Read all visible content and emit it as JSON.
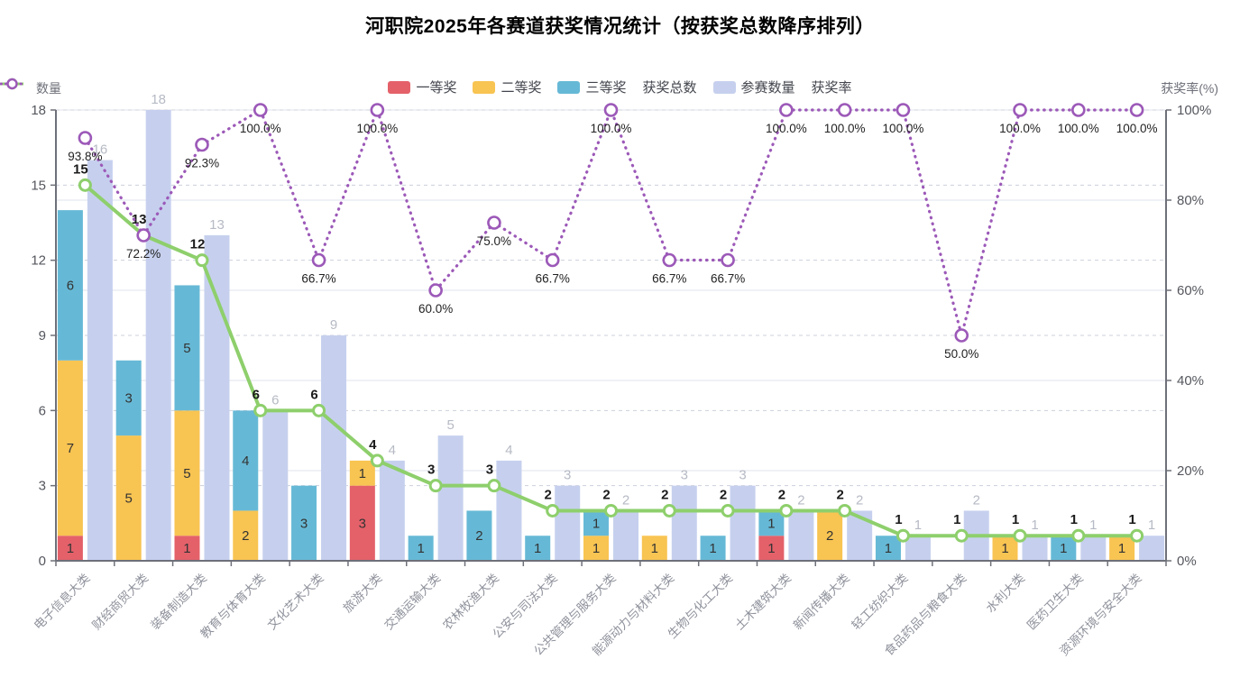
{
  "chart_data": {
    "type": "bar+line combo (stacked bars, grouped participation bar, value line on left axis, rate line on right axis)",
    "title": "河职院2025年各赛道获奖情况统计（按获奖总数降序排列）",
    "left_axis": {
      "label": "数量",
      "min": 0,
      "max": 18,
      "tick_values": [
        0,
        3,
        6,
        9,
        12,
        15,
        18
      ]
    },
    "right_axis": {
      "label": "获奖率(%)",
      "min": 0,
      "max": 100,
      "tick_values": [
        0,
        20,
        40,
        60,
        80,
        100
      ],
      "tick_labels": [
        "0%",
        "20%",
        "40%",
        "60%",
        "80%",
        "100%"
      ]
    },
    "grid": {
      "left_axis_gridlines": "dashed",
      "right_axis_gridlines": "solid",
      "legend_position": "top-center"
    },
    "categories": [
      "电子信息大类",
      "财经商贸大类",
      "装备制造大类",
      "教育与体育大类",
      "文化艺术大类",
      "旅游大类",
      "交通运输大类",
      "农林牧渔大类",
      "公安与司法大类",
      "公共管理与服务大类",
      "能源动力与材料大类",
      "生物与化工大类",
      "土木建筑大类",
      "新闻传播大类",
      "轻工纺织大类",
      "食品药品与粮食大类",
      "水利大类",
      "医药卫生大类",
      "资源环境与安全大类"
    ],
    "series": [
      {
        "name": "一等奖",
        "type": "bar",
        "stack": "prize",
        "axis": "left",
        "color": "#e4616a",
        "values": [
          1,
          0,
          1,
          0,
          0,
          3,
          0,
          0,
          0,
          0,
          0,
          0,
          1,
          0,
          0,
          0,
          0,
          0,
          0
        ],
        "labels": "inside"
      },
      {
        "name": "二等奖",
        "type": "bar",
        "stack": "prize",
        "axis": "left",
        "color": "#f8c452",
        "values": [
          7,
          5,
          5,
          2,
          0,
          1,
          0,
          0,
          0,
          1,
          1,
          0,
          0,
          2,
          0,
          0,
          1,
          0,
          1
        ],
        "labels": "inside"
      },
      {
        "name": "三等奖",
        "type": "bar",
        "stack": "prize",
        "axis": "left",
        "color": "#66b9d6",
        "values": [
          6,
          3,
          5,
          4,
          3,
          0,
          1,
          2,
          1,
          1,
          0,
          1,
          1,
          0,
          1,
          0,
          0,
          1,
          0
        ],
        "labels": "inside"
      },
      {
        "name": "获奖总数",
        "type": "line",
        "axis": "left",
        "color": "#8ecf6c",
        "values": [
          15,
          13,
          12,
          6,
          6,
          4,
          3,
          3,
          2,
          2,
          2,
          2,
          2,
          2,
          1,
          1,
          1,
          1,
          1
        ],
        "labels": "above-point"
      },
      {
        "name": "参赛数量",
        "type": "bar",
        "stack": null,
        "axis": "left",
        "color": "#c6d0ee",
        "values": [
          16,
          18,
          13,
          6,
          9,
          4,
          5,
          4,
          3,
          2,
          3,
          3,
          2,
          2,
          1,
          2,
          1,
          1,
          1
        ],
        "labels": "above"
      },
      {
        "name": "获奖率",
        "type": "dotted-line",
        "axis": "right",
        "color": "#9c59b8",
        "values": [
          93.8,
          72.2,
          92.3,
          100.0,
          66.7,
          100.0,
          60.0,
          75.0,
          66.7,
          100.0,
          66.7,
          66.7,
          100.0,
          100.0,
          100.0,
          50.0,
          100.0,
          100.0,
          100.0
        ],
        "value_labels": [
          "93.8%",
          "72.2%",
          "92.3%",
          "100.0%",
          "66.7%",
          "100.0%",
          "60.0%",
          "75.0%",
          "66.7%",
          "100.0%",
          "66.7%",
          "66.7%",
          "100.0%",
          "100.0%",
          "100.0%",
          "50.0%",
          "100.0%",
          "100.0%",
          "100.0%"
        ],
        "labels": "below-point"
      }
    ],
    "colors": {
      "first_prize": "#e4616a",
      "second_prize": "#f8c452",
      "third_prize": "#66b9d6",
      "total_line": "#8ecf6c",
      "participants_bar": "#c6d0ee",
      "rate_line": "#9c59b8",
      "axis_line": "#6e7079",
      "tick_label": "#55575e",
      "category_label": "#8f929c",
      "inside_label": "#333333",
      "participant_label": "#b6bac4",
      "total_label": "#1a1a1a",
      "rate_label": "#222222",
      "grid_dashed": "#ccd0db",
      "grid_solid": "#dfe3ee"
    }
  }
}
